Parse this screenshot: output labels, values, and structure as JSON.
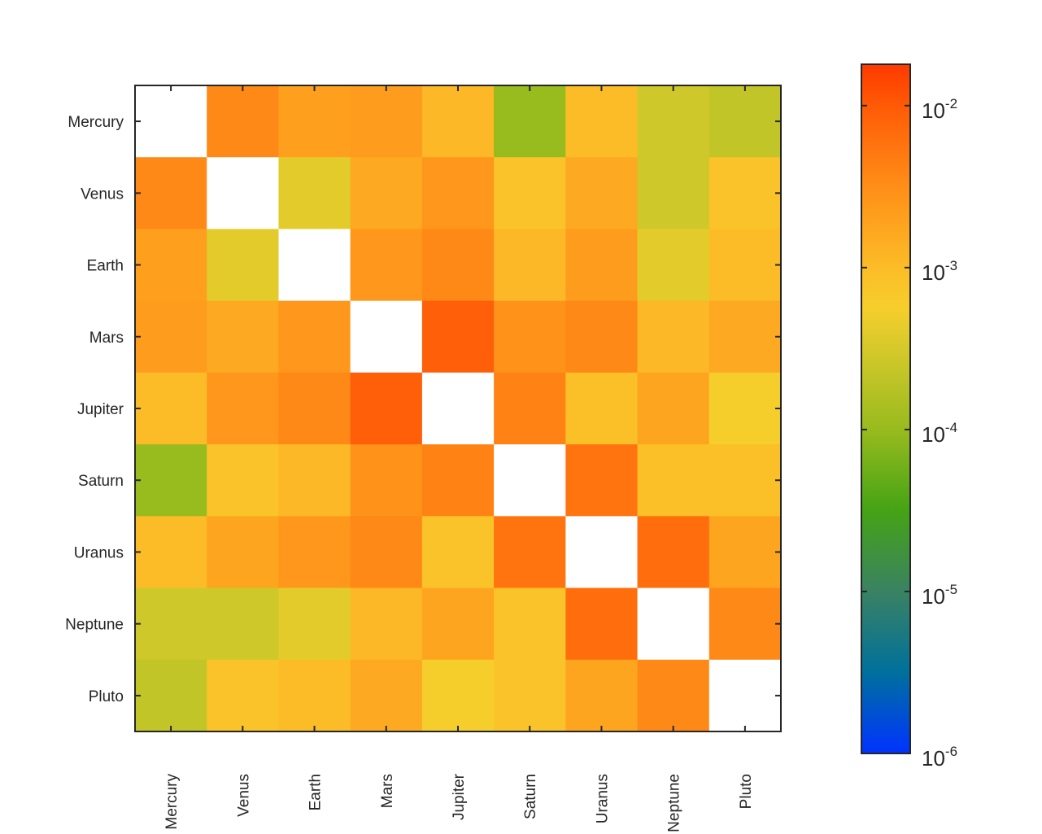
{
  "chart_data": {
    "type": "heatmap",
    "title": "",
    "xlabel": "",
    "ylabel": "",
    "x_categories": [
      "Mercury",
      "Venus",
      "Earth",
      "Mars",
      "Jupiter",
      "Saturn",
      "Uranus",
      "Neptune",
      "Pluto"
    ],
    "y_categories": [
      "Mercury",
      "Venus",
      "Earth",
      "Mars",
      "Jupiter",
      "Saturn",
      "Uranus",
      "Neptune",
      "Pluto"
    ],
    "values": [
      [
        null,
        0.0035,
        0.002,
        0.0022,
        0.0011,
        0.0001,
        0.001,
        0.00028,
        0.00022
      ],
      [
        0.0035,
        null,
        0.0004,
        0.0016,
        0.0025,
        0.00079,
        0.0016,
        0.00028,
        0.00079
      ],
      [
        0.002,
        0.0004,
        null,
        0.0025,
        0.0035,
        0.0011,
        0.0022,
        0.0004,
        0.001
      ],
      [
        0.0022,
        0.0016,
        0.0025,
        null,
        0.0089,
        0.0028,
        0.0035,
        0.0011,
        0.0016
      ],
      [
        0.001,
        0.0025,
        0.0035,
        0.0089,
        null,
        0.004,
        0.00089,
        0.0018,
        0.00056
      ],
      [
        0.0001,
        0.00079,
        0.0011,
        0.0028,
        0.004,
        null,
        0.0056,
        0.00089,
        0.00089
      ],
      [
        0.001,
        0.0018,
        0.0025,
        0.0035,
        0.00079,
        0.0056,
        null,
        0.0066,
        0.0018
      ],
      [
        0.00028,
        0.00028,
        0.0004,
        0.0011,
        0.0018,
        0.00079,
        0.0066,
        null,
        0.0035
      ],
      [
        0.00022,
        0.00079,
        0.001,
        0.0016,
        0.00056,
        0.00079,
        0.0018,
        0.0035,
        null
      ]
    ],
    "colorbar": {
      "scale": "log",
      "range": [
        1e-06,
        0.018
      ],
      "tick_labels": [
        {
          "base": "10",
          "exp": "-6",
          "value": 1e-06
        },
        {
          "base": "10",
          "exp": "-5",
          "value": 1e-05
        },
        {
          "base": "10",
          "exp": "-4",
          "value": 0.0001
        },
        {
          "base": "10",
          "exp": "-3",
          "value": 0.001
        },
        {
          "base": "10",
          "exp": "-2",
          "value": 0.01
        }
      ],
      "colormap": [
        {
          "log": -6.0,
          "color": "#0033ff"
        },
        {
          "log": -5.5,
          "color": "#00709c"
        },
        {
          "log": -5.0,
          "color": "#3a8262"
        },
        {
          "log": -4.5,
          "color": "#45a315"
        },
        {
          "log": -4.0,
          "color": "#98bb1e"
        },
        {
          "log": -3.5,
          "color": "#d6c92b"
        },
        {
          "log": -3.25,
          "color": "#f6ce2c"
        },
        {
          "log": -3.0,
          "color": "#fcbc27"
        },
        {
          "log": -2.5,
          "color": "#ff8e18"
        },
        {
          "log": -2.0,
          "color": "#ff5a06"
        },
        {
          "log": -1.75,
          "color": "#ff3a00"
        }
      ]
    },
    "diagonal_color": "#ffffff"
  }
}
